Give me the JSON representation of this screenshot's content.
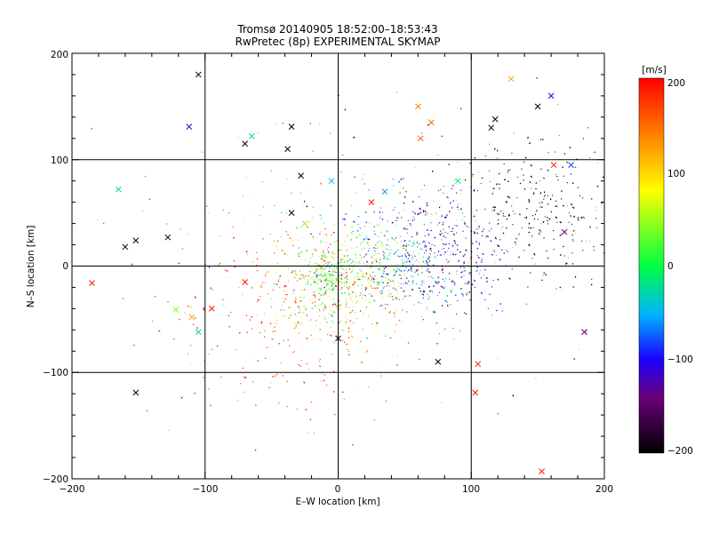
{
  "chart_data": {
    "type": "scatter",
    "title_lines": [
      "Tromsø 20140905  18:52:00–18:53:43",
      "RwPretec (8p) EXPERIMENTAL SKYMAP"
    ],
    "xlabel": "E–W location [km]",
    "ylabel": "N–S location [km]",
    "xlim": [
      -200,
      200
    ],
    "ylim": [
      -200,
      200
    ],
    "x_ticks": [
      "−200",
      "−100",
      "0",
      "100",
      "200"
    ],
    "y_ticks": [
      "−200",
      "−100",
      "0",
      "100",
      "200"
    ],
    "x_tick_values": [
      -200,
      -100,
      0,
      100,
      200
    ],
    "y_tick_values": [
      -200,
      -100,
      0,
      100,
      200
    ],
    "grid": true,
    "colorbar": {
      "label": "[m/s]",
      "range": [
        -200,
        200
      ],
      "tick_labels": [
        "200",
        "100",
        "0",
        "−100",
        "−200"
      ],
      "tick_values": [
        200,
        100,
        0,
        -100,
        -200
      ],
      "colormap": "black-purple-blue-cyan-green-yellow-red"
    },
    "clusters": [
      {
        "cx": 0,
        "cy": -15,
        "sx": 28,
        "sy": 28,
        "vmean": 90,
        "vsd": 70,
        "n": 520
      },
      {
        "cx": -5,
        "cy": -10,
        "sx": 10,
        "sy": 10,
        "vmean": 20,
        "vsd": 45,
        "n": 180
      },
      {
        "cx": -40,
        "cy": -55,
        "sx": 45,
        "sy": 45,
        "vmean": 185,
        "vsd": 25,
        "n": 220
      },
      {
        "cx": 75,
        "cy": 10,
        "sx": 28,
        "sy": 30,
        "vmean": -110,
        "vsd": 45,
        "n": 460
      },
      {
        "cx": 40,
        "cy": 5,
        "sx": 18,
        "sy": 22,
        "vmean": -25,
        "vsd": 35,
        "n": 160
      },
      {
        "cx": 150,
        "cy": 55,
        "sx": 35,
        "sy": 35,
        "vmean": -195,
        "vsd": 8,
        "n": 260
      },
      {
        "cx": 20,
        "cy": 40,
        "sx": 90,
        "sy": 80,
        "vmean": 0,
        "vsd": 130,
        "n": 150
      }
    ],
    "crosses": [
      {
        "x": -105,
        "y": 180,
        "v": -200
      },
      {
        "x": -112,
        "y": 131,
        "v": -120
      },
      {
        "x": -165,
        "y": 72,
        "v": -20
      },
      {
        "x": -160,
        "y": 18,
        "v": -200
      },
      {
        "x": -152,
        "y": 24,
        "v": -200
      },
      {
        "x": -128,
        "y": 27,
        "v": -200
      },
      {
        "x": -185,
        "y": -16,
        "v": 190
      },
      {
        "x": -122,
        "y": -41,
        "v": 40
      },
      {
        "x": -105,
        "y": -62,
        "v": -20
      },
      {
        "x": -152,
        "y": -119,
        "v": -200
      },
      {
        "x": -65,
        "y": 122,
        "v": -20
      },
      {
        "x": -35,
        "y": 131,
        "v": -200
      },
      {
        "x": -38,
        "y": 110,
        "v": -200
      },
      {
        "x": -28,
        "y": 85,
        "v": -200
      },
      {
        "x": -35,
        "y": 50,
        "v": -200
      },
      {
        "x": -25,
        "y": 40,
        "v": 40
      },
      {
        "x": -70,
        "y": 115,
        "v": -200
      },
      {
        "x": 0,
        "y": -68,
        "v": -200
      },
      {
        "x": 62,
        "y": 120,
        "v": 160
      },
      {
        "x": 70,
        "y": 135,
        "v": 150
      },
      {
        "x": 60,
        "y": 150,
        "v": 140
      },
      {
        "x": 90,
        "y": 80,
        "v": -10
      },
      {
        "x": 115,
        "y": 130,
        "v": -200
      },
      {
        "x": 118,
        "y": 138,
        "v": -200
      },
      {
        "x": 160,
        "y": 160,
        "v": -100
      },
      {
        "x": 150,
        "y": 150,
        "v": -200
      },
      {
        "x": 130,
        "y": 176,
        "v": 120
      },
      {
        "x": 105,
        "y": -92,
        "v": 190
      },
      {
        "x": 103,
        "y": -119,
        "v": 190
      },
      {
        "x": 75,
        "y": -90,
        "v": -200
      },
      {
        "x": 153,
        "y": -193,
        "v": 190
      },
      {
        "x": 185,
        "y": -62,
        "v": -150
      },
      {
        "x": 170,
        "y": 32,
        "v": -150
      },
      {
        "x": 162,
        "y": 95,
        "v": 180
      },
      {
        "x": 175,
        "y": 95,
        "v": -80
      },
      {
        "x": -70,
        "y": -15,
        "v": 190
      },
      {
        "x": -95,
        "y": -40,
        "v": 190
      },
      {
        "x": -110,
        "y": -48,
        "v": 120
      },
      {
        "x": 25,
        "y": 60,
        "v": 190
      },
      {
        "x": 35,
        "y": 70,
        "v": -60
      },
      {
        "x": -5,
        "y": 80,
        "v": -50
      }
    ]
  }
}
